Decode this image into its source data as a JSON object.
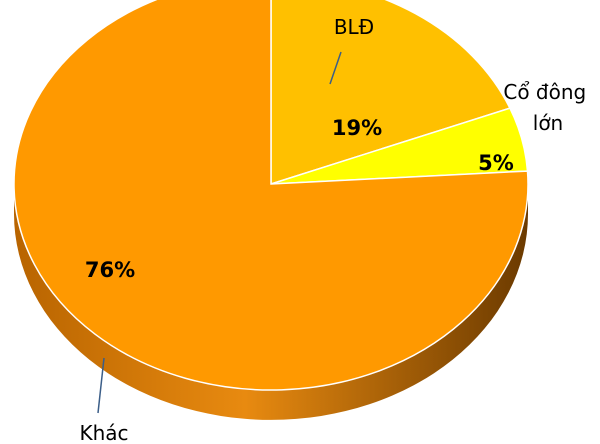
{
  "chart_data": {
    "type": "pie",
    "title": "",
    "slices": [
      {
        "label": "BLĐ",
        "value": 19,
        "value_label": "19%",
        "color": "#ffc000"
      },
      {
        "label": "Cổ đông lớn",
        "label_lines": [
          "Cổ đông",
          "lớn"
        ],
        "value": 5,
        "value_label": "5%",
        "color": "#ffff00"
      },
      {
        "label": "Khác",
        "value": 76,
        "value_label": "76%",
        "color": "#ff9900"
      }
    ],
    "style": "3d",
    "legend": "none"
  }
}
